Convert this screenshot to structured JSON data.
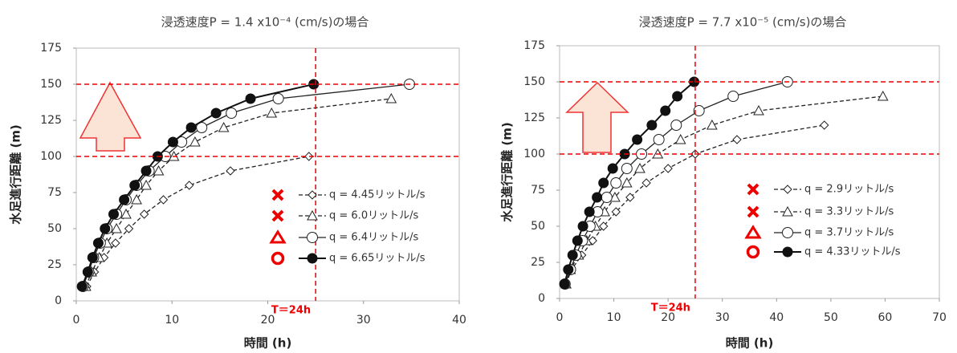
{
  "chart_data": [
    {
      "type": "line",
      "title": "浸透速度P = 1.4 x10⁻⁴ (cm/s)の場合",
      "x_label": "時間 (h)",
      "y_label": "水足進行距離 (m)",
      "xlim": [
        0,
        40
      ],
      "xticks": [
        0,
        10,
        20,
        30,
        40
      ],
      "ylim": [
        0,
        175
      ],
      "yticks": [
        0,
        25,
        50,
        75,
        100,
        125,
        150,
        175
      ],
      "hlines": [
        150,
        100
      ],
      "vline": 25,
      "annotation": "T＝24h",
      "series": [
        {
          "name": "q = 4.45リットル/s",
          "color": "#222",
          "marker": "diamond",
          "dashed": true,
          "verdict": "cross",
          "x": [
            1.1,
            1.9,
            2.9,
            4.1,
            5.5,
            7.1,
            9.1,
            11.8,
            16.1,
            24.3
          ],
          "values": [
            10,
            20,
            30,
            40,
            50,
            60,
            70,
            80,
            90,
            100
          ]
        },
        {
          "name": "q = 6.0リットル/s",
          "color": "#222",
          "marker": "triangle",
          "dashed": true,
          "verdict": "cross",
          "x": [
            1.0,
            1.6,
            2.4,
            3.2,
            4.2,
            5.2,
            6.3,
            7.3,
            8.6,
            10.2,
            12.4,
            15.4,
            20.4,
            32.9
          ],
          "values": [
            10,
            20,
            30,
            40,
            50,
            60,
            70,
            80,
            90,
            100,
            110,
            120,
            130,
            140
          ]
        },
        {
          "name": "q = 6.4リットル/s",
          "color": "#222",
          "marker": "circle",
          "dashed": false,
          "verdict": "triangle",
          "x": [
            0.7,
            1.3,
            1.8,
            2.5,
            3.2,
            4.2,
            5.2,
            6.3,
            7.6,
            9.3,
            11.0,
            13.1,
            16.2,
            21.1,
            34.8
          ],
          "values": [
            10,
            20,
            30,
            40,
            50,
            60,
            70,
            80,
            90,
            100,
            110,
            120,
            130,
            140,
            150
          ]
        },
        {
          "name": "q = 6.65リットル/s",
          "color": "#111",
          "marker": "dot",
          "dashed": false,
          "verdict": "circle",
          "x": [
            0.6,
            1.2,
            1.7,
            2.3,
            3.0,
            3.9,
            5.0,
            6.1,
            7.3,
            8.5,
            10.1,
            12.0,
            14.6,
            18.2,
            24.8
          ],
          "values": [
            10,
            20,
            30,
            40,
            50,
            60,
            70,
            80,
            90,
            100,
            110,
            120,
            130,
            140,
            150
          ]
        }
      ]
    },
    {
      "type": "line",
      "title": "浸透速度P = 7.7 x10⁻⁵ (cm/s)の場合",
      "x_label": "時間 (h)",
      "y_label": "水足進行距離 (m)",
      "xlim": [
        0,
        70
      ],
      "xticks": [
        0,
        10,
        20,
        30,
        40,
        50,
        60,
        70
      ],
      "ylim": [
        0,
        175
      ],
      "yticks": [
        0,
        25,
        50,
        75,
        100,
        125,
        150,
        175
      ],
      "hlines": [
        150,
        100
      ],
      "vline": 25,
      "annotation": "T＝24h",
      "series": [
        {
          "name": "q = 2.9リットル/s",
          "color": "#222",
          "marker": "diamond",
          "dashed": true,
          "verdict": "cross",
          "x": [
            1.2,
            2.2,
            4.1,
            6.1,
            8.1,
            10.4,
            13.0,
            16.0,
            20.0,
            25.0,
            32.7,
            48.8
          ],
          "values": [
            10,
            20,
            30,
            40,
            50,
            60,
            70,
            80,
            90,
            100,
            110,
            120
          ]
        },
        {
          "name": "q = 3.3リットル/s",
          "color": "#222",
          "marker": "triangle",
          "dashed": true,
          "verdict": "cross",
          "x": [
            1.2,
            2.0,
            3.5,
            5.0,
            6.6,
            8.3,
            10.2,
            12.4,
            14.8,
            18.1,
            22.3,
            28.1,
            36.7,
            59.6
          ],
          "values": [
            10,
            20,
            30,
            40,
            50,
            60,
            70,
            80,
            90,
            100,
            110,
            120,
            130,
            140
          ]
        },
        {
          "name": "q = 3.7リットル/s",
          "color": "#222",
          "marker": "circle",
          "dashed": false,
          "verdict": "triangle",
          "x": [
            1.0,
            2.0,
            3.0,
            4.2,
            5.6,
            7.0,
            8.7,
            10.4,
            12.4,
            15.1,
            18.3,
            21.5,
            25.7,
            32.0,
            42.0
          ],
          "values": [
            10,
            20,
            30,
            40,
            50,
            60,
            70,
            80,
            90,
            100,
            110,
            120,
            130,
            140,
            150
          ]
        },
        {
          "name": "q = 4.33リットル/s",
          "color": "#111",
          "marker": "dot",
          "dashed": false,
          "verdict": "circle",
          "x": [
            0.9,
            1.6,
            2.4,
            3.3,
            4.3,
            5.5,
            6.9,
            8.1,
            9.8,
            12.0,
            14.3,
            17.0,
            19.5,
            21.7,
            24.8
          ],
          "values": [
            10,
            20,
            30,
            40,
            50,
            60,
            70,
            80,
            90,
            100,
            110,
            120,
            130,
            140,
            150
          ]
        }
      ]
    }
  ]
}
